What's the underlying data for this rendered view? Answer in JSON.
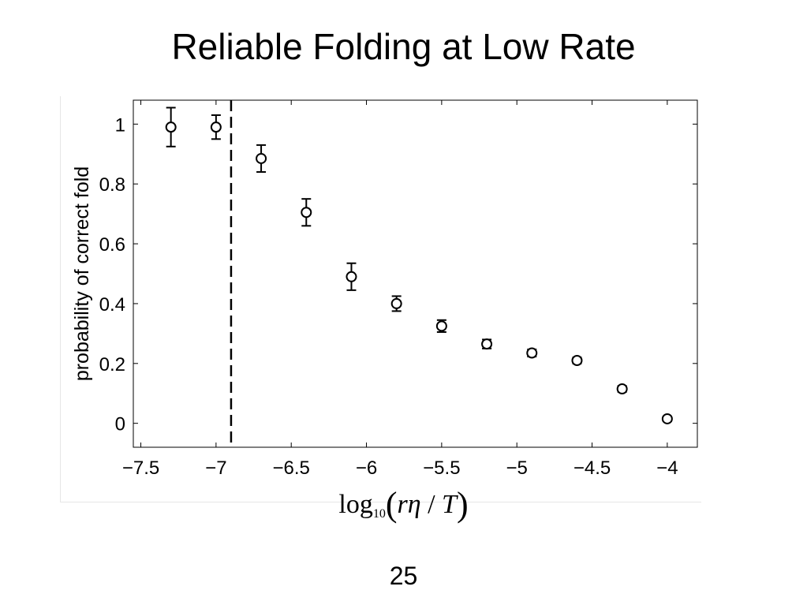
{
  "slide": {
    "title": "Reliable Folding at Low Rate",
    "page_number": "25"
  },
  "chart_data": {
    "type": "scatter",
    "title": "",
    "xlabel_parts": {
      "log": "log",
      "base": "10",
      "open": "(",
      "r": "r",
      "eta": "η",
      "slash": " / ",
      "T": "T",
      "close": ")"
    },
    "ylabel": "probability of correct fold",
    "xlim": [
      -7.55,
      -3.8
    ],
    "ylim": [
      -0.08,
      1.08
    ],
    "xticks": [
      -7.5,
      -7,
      -6.5,
      -6,
      -5.5,
      -5,
      -4.5,
      -4
    ],
    "xtick_labels": [
      "−7.5",
      "−7",
      "−6.5",
      "−6",
      "−5.5",
      "−5",
      "−4.5",
      "−4"
    ],
    "yticks": [
      0,
      0.2,
      0.4,
      0.6,
      0.8,
      1
    ],
    "ytick_labels": [
      "0",
      "0.2",
      "0.4",
      "0.6",
      "0.8",
      "1"
    ],
    "reference_line": {
      "x": -6.9,
      "style": "dashed"
    },
    "grid": false,
    "marker": "open-circle",
    "series": [
      {
        "points": [
          {
            "x": -7.3,
            "y": 0.99,
            "err": 0.065
          },
          {
            "x": -7.0,
            "y": 0.99,
            "err": 0.04
          },
          {
            "x": -6.7,
            "y": 0.885,
            "err": 0.045
          },
          {
            "x": -6.4,
            "y": 0.705,
            "err": 0.045
          },
          {
            "x": -6.1,
            "y": 0.49,
            "err": 0.045
          },
          {
            "x": -5.8,
            "y": 0.4,
            "err": 0.025
          },
          {
            "x": -5.5,
            "y": 0.325,
            "err": 0.02
          },
          {
            "x": -5.2,
            "y": 0.265,
            "err": 0.015
          },
          {
            "x": -4.9,
            "y": 0.235,
            "err": 0.012
          },
          {
            "x": -4.6,
            "y": 0.21,
            "err": 0.01
          },
          {
            "x": -4.3,
            "y": 0.115,
            "err": 0.01
          },
          {
            "x": -4.0,
            "y": 0.015,
            "err": 0.008
          }
        ]
      }
    ]
  }
}
